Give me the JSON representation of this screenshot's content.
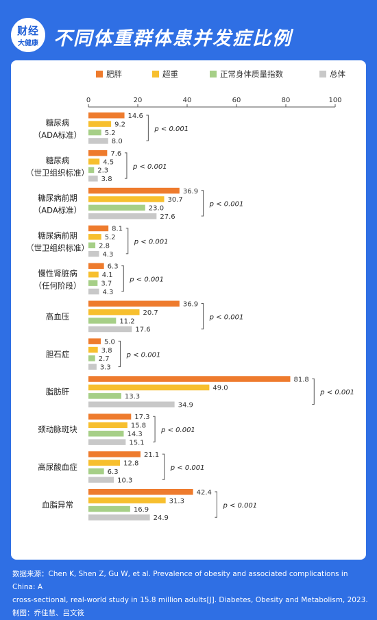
{
  "header": {
    "logo_top": "财经",
    "logo_bottom": "大健康",
    "title": "不同体重群体患并发症比例"
  },
  "chart_data": {
    "type": "bar",
    "orientation": "horizontal",
    "title": "",
    "xlabel": "",
    "ylabel": "",
    "xlim": [
      0,
      100
    ],
    "xticks": [
      0,
      20,
      40,
      60,
      80,
      100
    ],
    "grid": false,
    "legend_position": "top",
    "categories": [
      [
        "糖尿病",
        "（ADA标准）"
      ],
      [
        "糖尿病",
        "（世卫组织标准）"
      ],
      [
        "糖尿病前期",
        "（ADA标准）"
      ],
      [
        "糖尿病前期",
        "（世卫组织标准）"
      ],
      [
        "慢性肾脏病",
        "（任何阶段）"
      ],
      [
        "高血压"
      ],
      [
        "胆石症"
      ],
      [
        "脂肪肝"
      ],
      [
        "颈动脉斑块"
      ],
      [
        "高尿酸血症"
      ],
      [
        "血脂异常"
      ]
    ],
    "series": [
      {
        "name": "肥胖",
        "color": "#ee7b2d",
        "values": [
          14.6,
          7.6,
          36.9,
          8.1,
          6.3,
          36.9,
          5.0,
          81.8,
          17.3,
          21.1,
          42.4
        ]
      },
      {
        "name": "超重",
        "color": "#f7bf2e",
        "values": [
          9.2,
          4.5,
          30.7,
          5.2,
          4.1,
          20.7,
          3.8,
          49.0,
          15.8,
          12.8,
          31.3
        ]
      },
      {
        "name": "正常身体质量指数",
        "color": "#a6cf87",
        "values": [
          5.2,
          2.3,
          23.0,
          2.8,
          3.7,
          11.2,
          2.7,
          13.3,
          14.3,
          6.3,
          16.9
        ]
      },
      {
        "name": "总体",
        "color": "#c8c8c8",
        "values": [
          8.0,
          3.8,
          27.6,
          4.3,
          4.3,
          17.6,
          3.3,
          34.9,
          15.1,
          10.3,
          24.9
        ]
      }
    ],
    "value_labels": [
      [
        "14.6",
        "9.2",
        "5.2",
        "8.0"
      ],
      [
        "7.6",
        "4.5",
        "2.3",
        "3.8"
      ],
      [
        "36.9",
        "30.7",
        "23.0",
        "27.6"
      ],
      [
        "8.1",
        "5.2",
        "2.8",
        "4.3"
      ],
      [
        "6.3",
        "4.1",
        "3.7",
        "4.3"
      ],
      [
        "36.9",
        "20.7",
        "11.2",
        "17.6"
      ],
      [
        "5.0",
        "3.8",
        "2.7",
        "3.3"
      ],
      [
        "81.8",
        "49.0",
        "13.3",
        "34.9"
      ],
      [
        "17.3",
        "15.8",
        "14.3",
        "15.1"
      ],
      [
        "21.1",
        "12.8",
        "6.3",
        "10.3"
      ],
      [
        "42.4",
        "31.3",
        "16.9",
        "24.9"
      ]
    ],
    "annotation": "p < 0.001"
  },
  "footer": {
    "source_line1": "数据来源：Chen K, Shen Z, Gu W, et al. Prevalence of obesity and associated complications in China: A",
    "source_line2": "cross-sectional, real-world study in 15.8 million adults[J]. Diabetes, Obesity and Metabolism, 2023.",
    "credit": "制图：乔佳慧、吕文筱"
  }
}
